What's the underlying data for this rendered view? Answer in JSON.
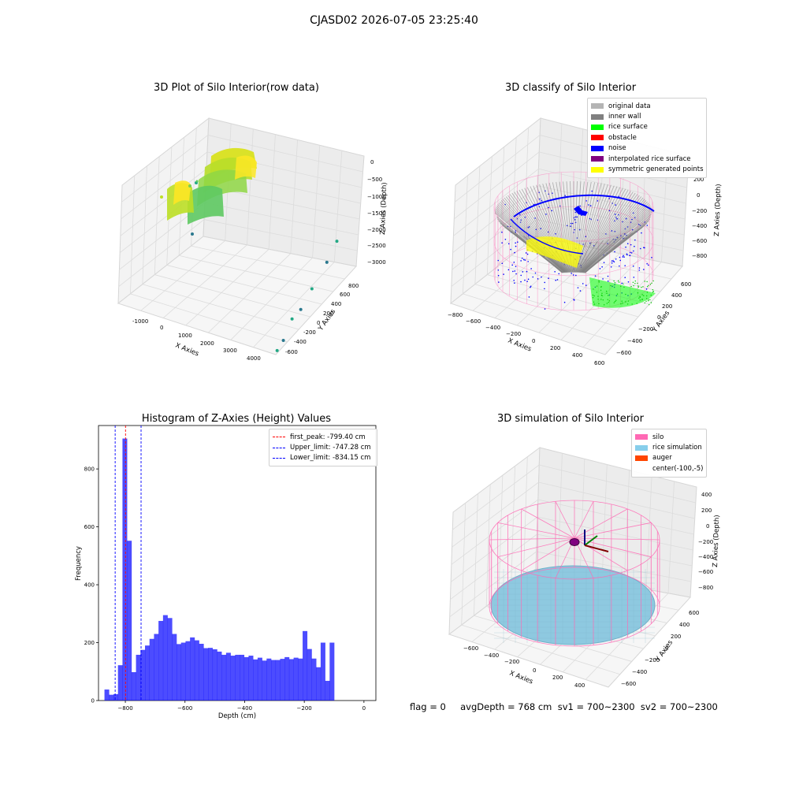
{
  "figure": {
    "suptitle": "CJASD02 2026-07-05 23:25:40",
    "status_line": "flag = 0     avgDepth = 768 cm  sv1 = 700~2300  sv2 = 700~2300"
  },
  "chart_data": [
    {
      "type": "scatter",
      "title": "3D Plot of Silo Interior(row data)",
      "xlabel": "X Axies",
      "ylabel": "Y Axies",
      "zlabel": "Z Axies (Depth)",
      "x_ticks": [
        "-1000",
        "0",
        "1000",
        "2000",
        "3000",
        "4000"
      ],
      "y_ticks": [
        "-600",
        "-400",
        "-200",
        "0",
        "200",
        "400",
        "600",
        "800"
      ],
      "z_ticks": [
        "0",
        "−500",
        "−1000",
        "−1500",
        "−2000",
        "−2500",
        "−3000"
      ],
      "colormap": [
        "#2a788e",
        "#22a884",
        "#7ad151",
        "#fde725"
      ],
      "points": [
        {
          "x": 4200,
          "y": 700,
          "z": -1500
        },
        {
          "x": 4100,
          "y": 550,
          "z": -1900
        },
        {
          "x": 4000,
          "y": 300,
          "z": -2300
        },
        {
          "x": 3950,
          "y": 100,
          "z": -2600
        },
        {
          "x": 3900,
          "y": -50,
          "z": -2650
        },
        {
          "x": 3850,
          "y": -200,
          "z": -3050
        },
        {
          "x": 3800,
          "y": -300,
          "z": -3200
        }
      ]
    },
    {
      "type": "scatter",
      "title": "3D classify of Silo Interior",
      "xlabel": "X Axies",
      "ylabel": "Y Axies",
      "zlabel": "Z Axies (Depth)",
      "x_ticks": [
        "−800",
        "−600",
        "−400",
        "−200",
        "0",
        "200",
        "400",
        "600"
      ],
      "y_ticks": [
        "−600",
        "−400",
        "−200",
        "0",
        "200",
        "400",
        "600"
      ],
      "z_ticks": [
        "200",
        "0",
        "−200",
        "−400",
        "−600",
        "−800"
      ],
      "legend": [
        {
          "label": "original data",
          "color": "#b4b4b4"
        },
        {
          "label": "inner wall",
          "color": "#808080"
        },
        {
          "label": "rice surface",
          "color": "#00ff00"
        },
        {
          "label": "obstacle",
          "color": "#ff0000"
        },
        {
          "label": "noise",
          "color": "#0000ff"
        },
        {
          "label": "interpolated rice surface",
          "color": "#800080"
        },
        {
          "label": "symmetric generated points",
          "color": "#ffff00"
        }
      ]
    },
    {
      "type": "bar",
      "title": "Histogram of Z-Axies (Height) Values",
      "xlabel": "Depth (cm)",
      "ylabel": "Frequency",
      "xlim": [
        -890,
        40
      ],
      "ylim": [
        0,
        950
      ],
      "x_ticks": [
        -800,
        -600,
        -400,
        -200,
        0
      ],
      "y_ticks": [
        0,
        200,
        400,
        600,
        800
      ],
      "bar_color": "#0000ff",
      "bin_start": -870,
      "bin_width": 15.1,
      "values": [
        38,
        20,
        22,
        122,
        905,
        552,
        98,
        158,
        175,
        190,
        213,
        230,
        275,
        295,
        285,
        230,
        195,
        200,
        205,
        218,
        208,
        196,
        181,
        182,
        177,
        169,
        158,
        165,
        155,
        158,
        158,
        150,
        155,
        142,
        148,
        138,
        145,
        140,
        140,
        144,
        150,
        143,
        148,
        145,
        240,
        178,
        145,
        115,
        200,
        68,
        200
      ],
      "lines": [
        {
          "label": "first_peak: -799.40 cm",
          "x": -799.4,
          "color": "#ff0000"
        },
        {
          "label": "Upper_limit: -747.28 cm",
          "x": -747.28,
          "color": "#0000ff"
        },
        {
          "label": "Lower_limit: -834.15 cm",
          "x": -834.15,
          "color": "#0000ff"
        }
      ]
    },
    {
      "type": "scatter",
      "title": "3D simulation of Silo Interior",
      "xlabel": "X Axies",
      "ylabel": "Y Axies",
      "zlabel": "Z Axies (Depth)",
      "x_ticks": [
        "−600",
        "−400",
        "−200",
        "0",
        "200",
        "400"
      ],
      "y_ticks": [
        "−600",
        "−400",
        "−200",
        "0",
        "200",
        "400",
        "600"
      ],
      "z_ticks": [
        "400",
        "200",
        "0",
        "−200",
        "−400",
        "−600",
        "−800"
      ],
      "legend": [
        {
          "label": "silo",
          "color": "#ff69b4"
        },
        {
          "label": "rice simulation",
          "color": "#87ceeb"
        },
        {
          "label": "auger",
          "color": "#ff4500"
        },
        {
          "label": "center(-100,-5)",
          "color": ""
        }
      ]
    }
  ]
}
